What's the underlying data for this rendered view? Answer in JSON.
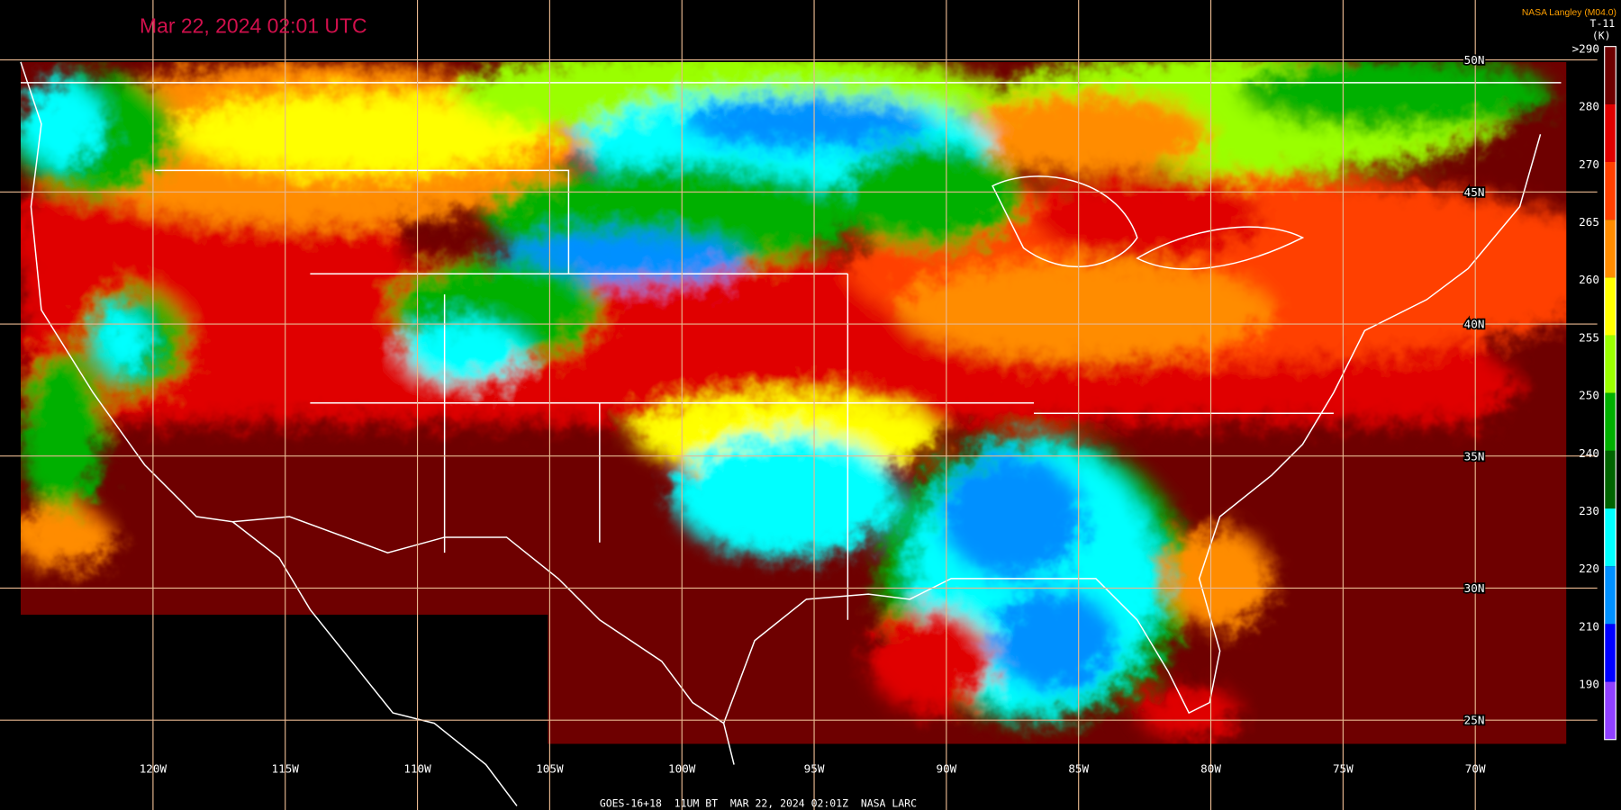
{
  "header": {
    "timestamp": "Mar 22, 2024 02:01 UTC",
    "credit": "NASA Langley (M04.0)"
  },
  "legend": {
    "title": "T-11",
    "unit": "(K)",
    "ticks": [
      ">290",
      "280",
      "270",
      "265",
      "260",
      "255",
      "250",
      "240",
      "230",
      "220",
      "210",
      "190"
    ],
    "colors": [
      "#6e0000",
      "#e00000",
      "#ff4000",
      "#ff8c00",
      "#ffff00",
      "#9aff00",
      "#00b000",
      "#006400",
      "#00ffff",
      "#0090ff",
      "#0000ff",
      "#9040ff"
    ]
  },
  "grid": {
    "longitudes": [
      "120W",
      "115W",
      "110W",
      "105W",
      "100W",
      "95W",
      "90W",
      "85W",
      "80W",
      "75W",
      "70W"
    ],
    "latitudes": [
      "50N",
      "45N",
      "40N",
      "35N",
      "30N",
      "25N"
    ]
  },
  "caption": "GOES-16+18  11UM BT  MAR 22, 2024 02:01Z  NASA LARC"
}
